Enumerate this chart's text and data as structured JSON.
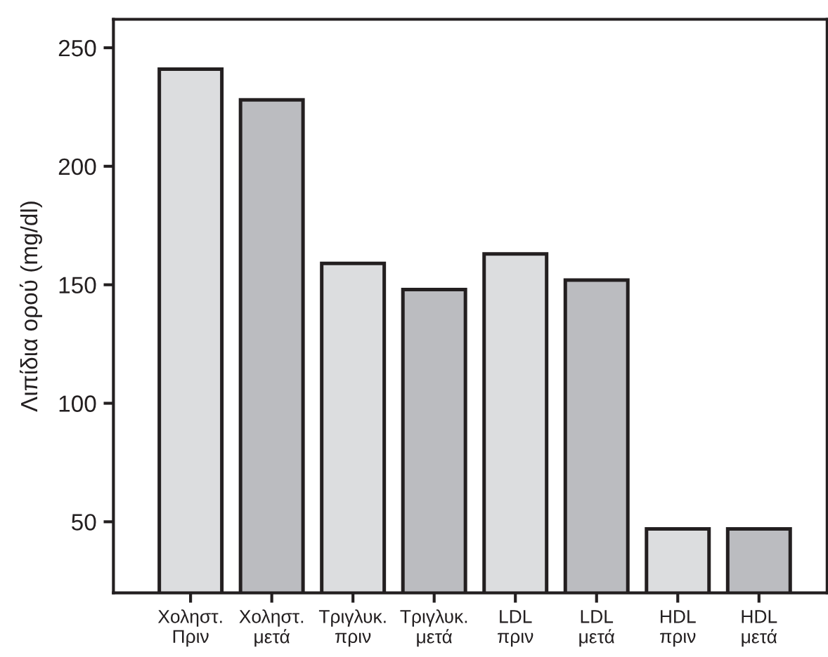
{
  "chart_data": {
    "type": "bar",
    "ylabel": "Λιπίδια ορού (mg/dl)",
    "categories": [
      "Χοληστ.\nΠριν",
      "Χοληστ.\nμετά",
      "Τριγλυκ.\nπριν",
      "Τριγλυκ.\nμετά",
      "LDL\nπριν",
      "LDL\nμετά",
      "HDL\nπριν",
      "HDL\nμετά"
    ],
    "values": [
      241,
      228,
      159,
      148,
      163,
      152,
      47,
      47
    ],
    "colors": [
      "#dcdddf",
      "#bbbcc0",
      "#dcdddf",
      "#bbbcc0",
      "#dcdddf",
      "#bbbcc0",
      "#dcdddf",
      "#bbbcc0"
    ],
    "ylim": [
      20,
      262
    ],
    "yticks": [
      50,
      100,
      150,
      200,
      250
    ],
    "grid": false
  }
}
